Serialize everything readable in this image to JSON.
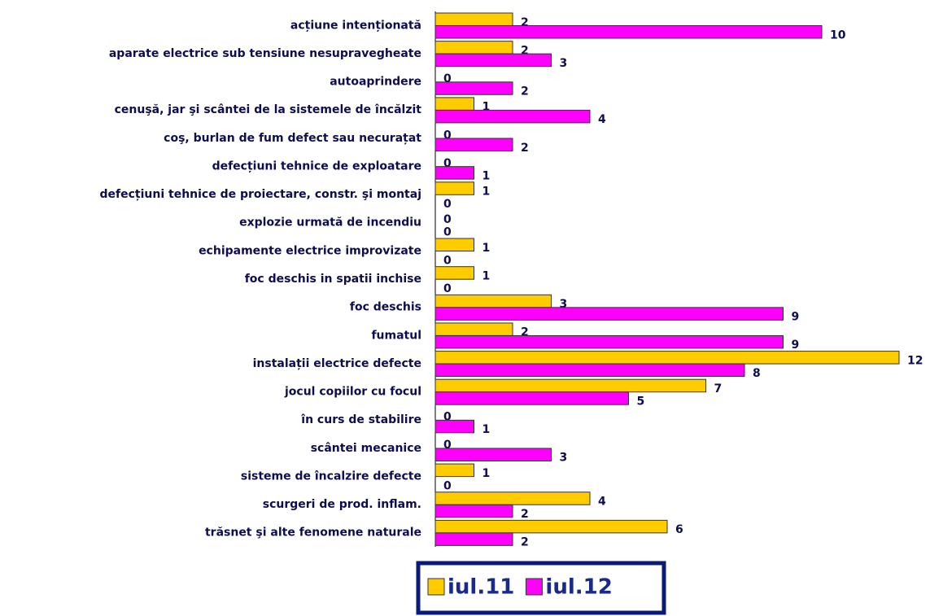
{
  "chart_data": {
    "type": "bar",
    "orientation": "horizontal",
    "categories": [
      "acțiune intenționată",
      "aparate electrice sub tensiune nesupravegheate",
      "autoaprindere",
      "cenuşă, jar şi scântei de la sistemele de încălzit",
      "coş, burlan  de fum defect sau necurațat",
      "defecțiuni tehnice de exploatare",
      "defecțiuni tehnice de proiectare, constr. şi montaj",
      "explozie urmată de incendiu",
      "echipamente electrice improvizate",
      "foc deschis in spatii inchise",
      "foc deschis",
      "fumatul",
      "instalații electrice defecte",
      "jocul copiilor cu focul",
      "în curs de stabilire",
      "scântei mecanice",
      "sisteme de încalzire defecte",
      "scurgeri de prod. inflam.",
      "trăsnet şi alte fenomene naturale"
    ],
    "series": [
      {
        "name": "iul.11",
        "color": "#ffcc00",
        "values": [
          2,
          2,
          0,
          1,
          0,
          0,
          1,
          0,
          1,
          1,
          3,
          2,
          12,
          7,
          0,
          0,
          1,
          4,
          6
        ]
      },
      {
        "name": "iul.12",
        "color": "#ff00ff",
        "values": [
          10,
          3,
          2,
          4,
          2,
          1,
          0,
          0,
          0,
          0,
          9,
          9,
          8,
          5,
          1,
          3,
          0,
          2,
          2
        ]
      }
    ],
    "xlim": [
      0,
      12
    ],
    "legend": "bottom"
  }
}
